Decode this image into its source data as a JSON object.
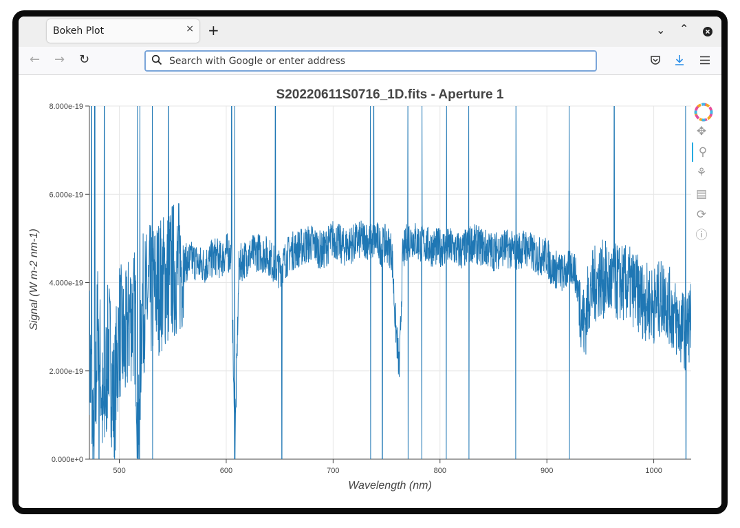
{
  "browser": {
    "tab_title": "Bokeh Plot",
    "tab_close": "×",
    "new_tab": "+",
    "url_placeholder": "Search with Google or enter address"
  },
  "chart_data": {
    "type": "line",
    "title": "S20220611S0716_1D.fits - Aperture 1",
    "xlabel": "Wavelength (nm)",
    "ylabel": "Signal (W m-2 nm-1)",
    "xlim": [
      472,
      1035
    ],
    "ylim": [
      0,
      8e-19
    ],
    "x_ticks": [
      "500",
      "600",
      "700",
      "800",
      "900",
      "1000"
    ],
    "y_ticks": [
      "0.000e+0",
      "2.000e-19",
      "4.000e-19",
      "6.000e-19",
      "8.000e-19"
    ],
    "grid": true,
    "line_color": "#1f77b4",
    "series": [
      {
        "x": [
          472,
          476,
          480,
          485,
          490,
          495,
          500,
          505,
          510,
          515,
          518,
          521,
          525,
          530,
          535,
          540,
          545,
          550,
          555,
          560,
          565,
          570,
          575,
          580,
          585,
          590,
          595,
          600,
          605,
          608,
          612,
          620,
          630,
          640,
          645,
          650,
          655,
          660,
          670,
          680,
          690,
          700,
          710,
          720,
          730,
          735,
          740,
          745,
          750,
          755,
          758,
          762,
          765,
          770,
          775,
          780,
          785,
          790,
          800,
          810,
          820,
          830,
          840,
          850,
          860,
          870,
          880,
          890,
          900,
          905,
          910,
          915,
          920,
          925,
          930,
          935,
          940,
          950,
          960,
          970,
          980,
          990,
          1000,
          1010,
          1020,
          1025,
          1030,
          1035
        ],
        "y": [
          2.6e-19,
          2e-20,
          3.2e-19,
          8e-20,
          2.7e-19,
          1.2e-19,
          3e-19,
          2.5e-19,
          3.3e-19,
          3.2e-19,
          2e-20,
          3.5e-19,
          3.6e-19,
          3.8e-19,
          3.9e-19,
          4e-19,
          4.1e-19,
          4.3e-19,
          4.3e-19,
          4.4e-19,
          4.5e-19,
          4.5e-19,
          4.4e-19,
          4.4e-19,
          4.5e-19,
          4.6e-19,
          4.5e-19,
          4.7e-19,
          4.6e-19,
          1e-20,
          4.4e-19,
          4.6e-19,
          4.7e-19,
          4.6e-19,
          4.4e-19,
          4.3e-19,
          4.5e-19,
          4.7e-19,
          4.8e-19,
          4.9e-19,
          4.7e-19,
          5e-19,
          4.8e-19,
          4.9e-19,
          5e-19,
          4.9e-19,
          5e-19,
          4.8e-19,
          4.9e-19,
          4.7e-19,
          3.2e-19,
          2e-19,
          4.6e-19,
          5e-19,
          5e-19,
          4.9e-19,
          4.9e-19,
          4.8e-19,
          4.8e-19,
          4.8e-19,
          4.7e-19,
          4.9e-19,
          4.8e-19,
          4.7e-19,
          4.8e-19,
          4.7e-19,
          4.8e-19,
          4.6e-19,
          4.6e-19,
          4.3e-19,
          4.3e-19,
          4.2e-19,
          4.3e-19,
          4.4e-19,
          3.7e-19,
          3e-19,
          3.8e-19,
          4.1e-19,
          4e-19,
          4e-19,
          3.9e-19,
          3.6e-19,
          3.5e-19,
          3.7e-19,
          3.2e-19,
          3e-19,
          2.9e-19,
          3.2e-19
        ]
      }
    ]
  }
}
